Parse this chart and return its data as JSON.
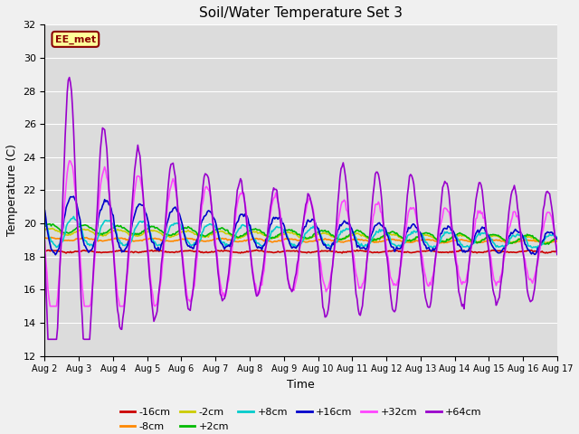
{
  "title": "Soil/Water Temperature Set 3",
  "xlabel": "Time",
  "ylabel": "Temperature (C)",
  "ylim": [
    12,
    32
  ],
  "yticks": [
    12,
    14,
    16,
    18,
    20,
    22,
    24,
    26,
    28,
    30,
    32
  ],
  "annotation": "EE_met",
  "bg_color": "#dcdcdc",
  "fig_color": "#f0f0f0",
  "series_order": [
    "-16cm",
    "-8cm",
    "-2cm",
    "+2cm",
    "+8cm",
    "+16cm",
    "+32cm",
    "+64cm"
  ],
  "series": {
    "-16cm": {
      "color": "#cc0000",
      "lw": 1.2
    },
    "-8cm": {
      "color": "#ff8800",
      "lw": 1.2
    },
    "-2cm": {
      "color": "#cccc00",
      "lw": 1.2
    },
    "+2cm": {
      "color": "#00bb00",
      "lw": 1.2
    },
    "+8cm": {
      "color": "#00cccc",
      "lw": 1.2
    },
    "+16cm": {
      "color": "#0000cc",
      "lw": 1.2
    },
    "+32cm": {
      "color": "#ff44ff",
      "lw": 1.2
    },
    "+64cm": {
      "color": "#9900cc",
      "lw": 1.2
    }
  },
  "legend_row1": [
    "-16cm",
    "-8cm",
    "-2cm",
    "+2cm",
    "+8cm",
    "+16cm"
  ],
  "legend_row2": [
    "+32cm",
    "+64cm"
  ],
  "days": [
    "Aug 2",
    "Aug 3",
    "Aug 4",
    "Aug 5",
    "Aug 6",
    "Aug 7",
    "Aug 8",
    "Aug 9",
    "Aug 10",
    "Aug 11",
    "Aug 12",
    "Aug 13",
    "Aug 14",
    "Aug 15",
    "Aug 16",
    "Aug 17"
  ],
  "num_points": 480
}
